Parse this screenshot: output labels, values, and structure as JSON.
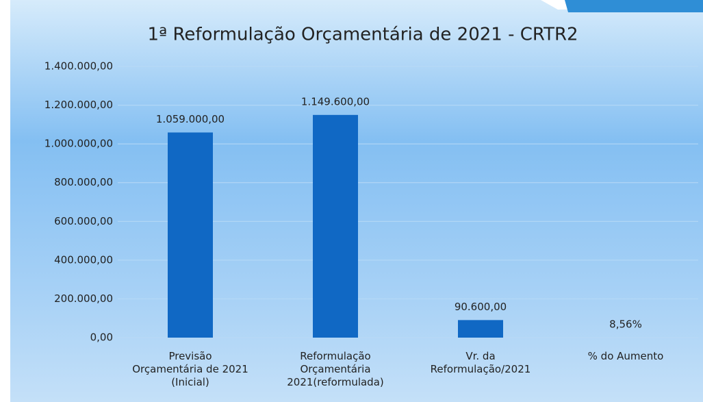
{
  "chart_data": {
    "type": "bar",
    "title": "1ª Reformulação Orçamentária de 2021 - CRTR2",
    "categories": [
      "Previsão\nOrçamentária de 2021\n(Inicial)",
      "Reformulação\nOrçamentária\n2021(reformulada)",
      "Vr. da\nReformulação/2021",
      "% do Aumento"
    ],
    "values": [
      1059000,
      1149600,
      90600,
      8.56
    ],
    "value_labels": [
      "1.059.000,00",
      "1.149.600,00",
      "90.600,00",
      "8,56%"
    ],
    "color": "#1068c4",
    "ylim": [
      0,
      1400000
    ],
    "yticks": [
      {
        "value": 0,
        "label": "0,00"
      },
      {
        "value": 200000,
        "label": "200.000,00"
      },
      {
        "value": 400000,
        "label": "400.000,00"
      },
      {
        "value": 600000,
        "label": "600.000,00"
      },
      {
        "value": 800000,
        "label": "800.000,00"
      },
      {
        "value": 1000000,
        "label": "1.000.000,00"
      },
      {
        "value": 1200000,
        "label": "1.200.000,00"
      },
      {
        "value": 1400000,
        "label": "1.400.000,00"
      }
    ],
    "grid": true
  }
}
